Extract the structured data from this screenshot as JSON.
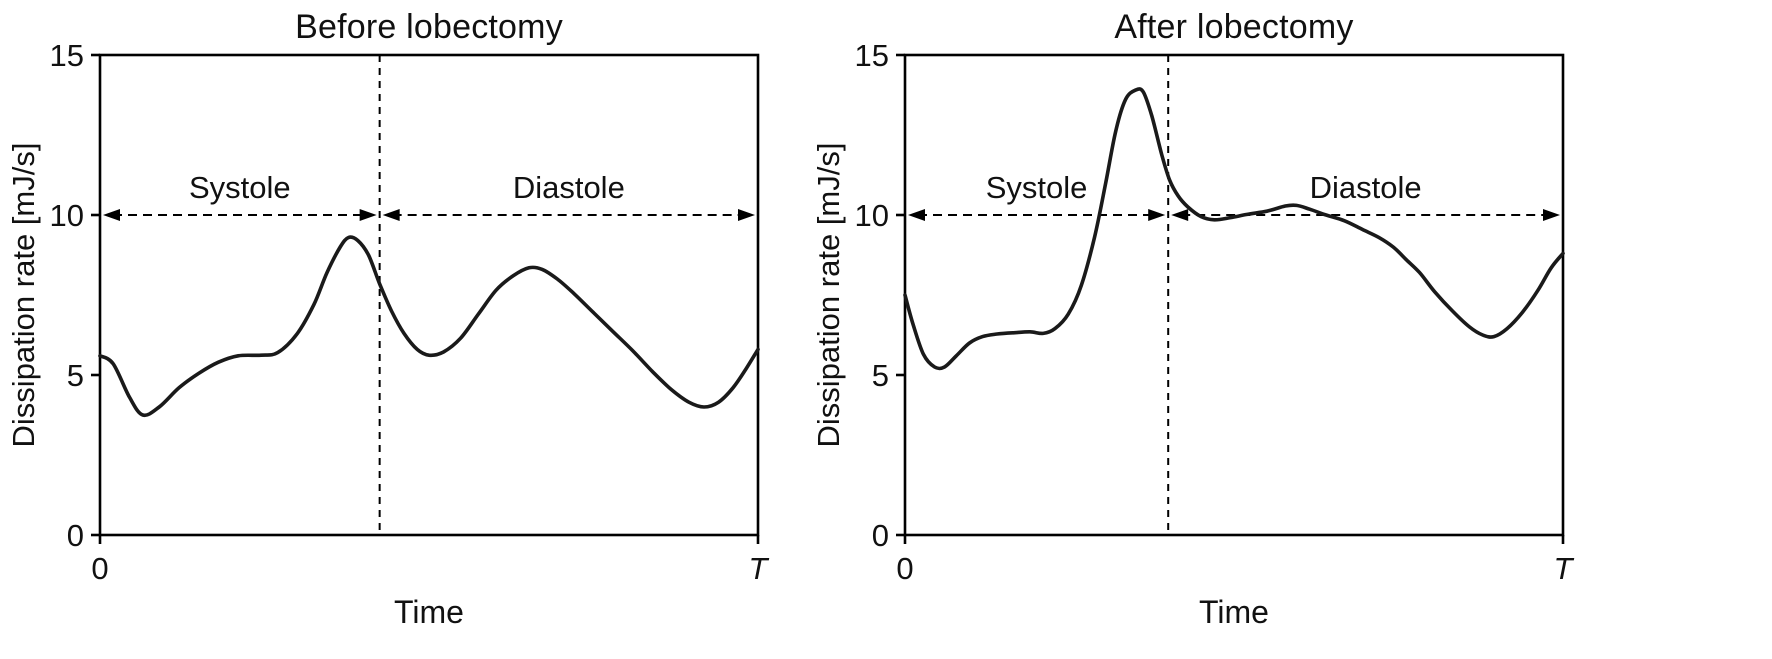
{
  "figure": {
    "background": "#ffffff",
    "line_color": "#1a1a1a",
    "axis_color": "#000000"
  },
  "chart_data": [
    {
      "type": "line",
      "title": "Before lobectomy",
      "xlabel": "Time",
      "ylabel": "Dissipation rate [mJ/s]",
      "x_tick_labels": [
        "0",
        "T"
      ],
      "yticks": [
        0,
        5,
        10,
        15
      ],
      "ylim": [
        0,
        15
      ],
      "xlim": [
        0,
        1
      ],
      "grid": false,
      "legend": "none",
      "divider_x": 0.425,
      "arrow_y": 10,
      "annotations": [
        {
          "label": "Systole",
          "range": [
            0,
            0.425
          ]
        },
        {
          "label": "Diastole",
          "range": [
            0.425,
            1
          ]
        }
      ],
      "points": [
        [
          0,
          5.6
        ],
        [
          0.02,
          5.35
        ],
        [
          0.045,
          4.3
        ],
        [
          0.065,
          3.75
        ],
        [
          0.09,
          4.0
        ],
        [
          0.12,
          4.6
        ],
        [
          0.15,
          5.05
        ],
        [
          0.18,
          5.4
        ],
        [
          0.21,
          5.6
        ],
        [
          0.245,
          5.62
        ],
        [
          0.27,
          5.7
        ],
        [
          0.3,
          6.3
        ],
        [
          0.325,
          7.2
        ],
        [
          0.345,
          8.2
        ],
        [
          0.365,
          9.0
        ],
        [
          0.378,
          9.3
        ],
        [
          0.392,
          9.2
        ],
        [
          0.408,
          8.75
        ],
        [
          0.425,
          7.85
        ],
        [
          0.443,
          7.0
        ],
        [
          0.462,
          6.3
        ],
        [
          0.482,
          5.8
        ],
        [
          0.5,
          5.62
        ],
        [
          0.522,
          5.72
        ],
        [
          0.548,
          6.15
        ],
        [
          0.575,
          6.9
        ],
        [
          0.602,
          7.65
        ],
        [
          0.628,
          8.1
        ],
        [
          0.652,
          8.35
        ],
        [
          0.672,
          8.3
        ],
        [
          0.695,
          8.0
        ],
        [
          0.72,
          7.55
        ],
        [
          0.75,
          6.95
        ],
        [
          0.78,
          6.35
        ],
        [
          0.81,
          5.75
        ],
        [
          0.84,
          5.1
        ],
        [
          0.868,
          4.55
        ],
        [
          0.895,
          4.15
        ],
        [
          0.918,
          4.0
        ],
        [
          0.94,
          4.15
        ],
        [
          0.962,
          4.6
        ],
        [
          0.982,
          5.2
        ],
        [
          1,
          5.8
        ]
      ]
    },
    {
      "type": "line",
      "title": "After lobectomy",
      "xlabel": "Time",
      "ylabel": "Dissipation rate [mJ/s]",
      "x_tick_labels": [
        "0",
        "T"
      ],
      "yticks": [
        0,
        5,
        10,
        15
      ],
      "ylim": [
        0,
        15
      ],
      "xlim": [
        0,
        1
      ],
      "grid": false,
      "legend": "none",
      "divider_x": 0.4,
      "arrow_y": 10,
      "annotations": [
        {
          "label": "Systole",
          "range": [
            0,
            0.4
          ]
        },
        {
          "label": "Diastole",
          "range": [
            0.4,
            1
          ]
        }
      ],
      "points": [
        [
          0,
          7.5
        ],
        [
          0.012,
          6.6
        ],
        [
          0.028,
          5.65
        ],
        [
          0.045,
          5.25
        ],
        [
          0.06,
          5.25
        ],
        [
          0.078,
          5.6
        ],
        [
          0.098,
          6.0
        ],
        [
          0.118,
          6.2
        ],
        [
          0.14,
          6.28
        ],
        [
          0.165,
          6.32
        ],
        [
          0.19,
          6.35
        ],
        [
          0.21,
          6.3
        ],
        [
          0.228,
          6.45
        ],
        [
          0.248,
          6.9
        ],
        [
          0.268,
          7.8
        ],
        [
          0.288,
          9.3
        ],
        [
          0.305,
          11.0
        ],
        [
          0.32,
          12.6
        ],
        [
          0.335,
          13.6
        ],
        [
          0.35,
          13.9
        ],
        [
          0.362,
          13.85
        ],
        [
          0.375,
          13.1
        ],
        [
          0.39,
          11.9
        ],
        [
          0.402,
          11.1
        ],
        [
          0.415,
          10.6
        ],
        [
          0.43,
          10.25
        ],
        [
          0.45,
          9.95
        ],
        [
          0.47,
          9.85
        ],
        [
          0.495,
          9.92
        ],
        [
          0.52,
          10.02
        ],
        [
          0.55,
          10.12
        ],
        [
          0.578,
          10.28
        ],
        [
          0.595,
          10.3
        ],
        [
          0.615,
          10.18
        ],
        [
          0.64,
          10.0
        ],
        [
          0.668,
          9.82
        ],
        [
          0.695,
          9.55
        ],
        [
          0.72,
          9.3
        ],
        [
          0.742,
          9.0
        ],
        [
          0.762,
          8.6
        ],
        [
          0.782,
          8.2
        ],
        [
          0.805,
          7.6
        ],
        [
          0.832,
          7.0
        ],
        [
          0.858,
          6.5
        ],
        [
          0.878,
          6.25
        ],
        [
          0.895,
          6.2
        ],
        [
          0.915,
          6.45
        ],
        [
          0.938,
          6.95
        ],
        [
          0.962,
          7.65
        ],
        [
          0.982,
          8.35
        ],
        [
          1,
          8.8
        ]
      ]
    }
  ]
}
